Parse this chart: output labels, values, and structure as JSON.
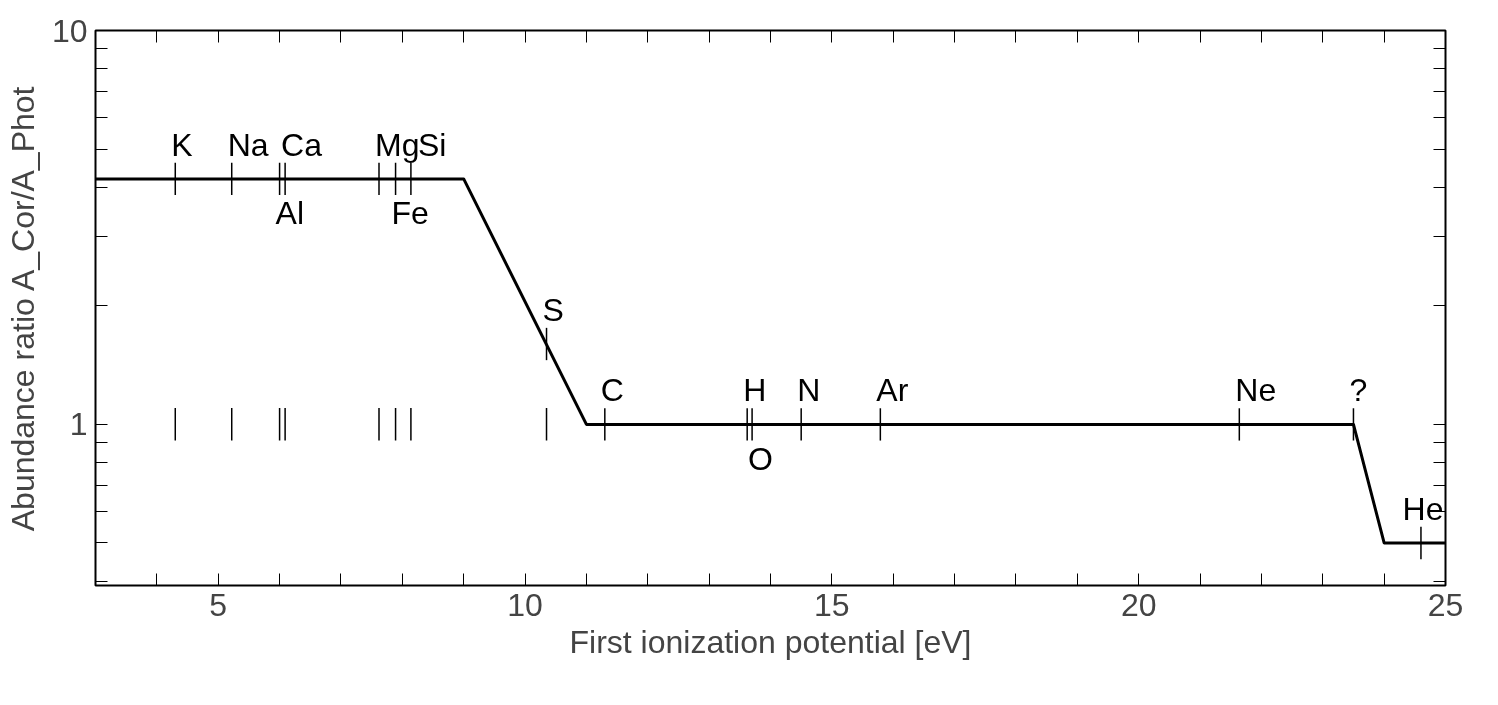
{
  "chart_data": {
    "type": "line",
    "xlabel": "First ionization potential [eV]",
    "ylabel": "Abundance ratio A_Cor/A_Phot",
    "log": "y",
    "grid": false,
    "line_style": "solid",
    "xlim": [
      3,
      25
    ],
    "ylim": [
      0.39,
      10
    ],
    "xticks": [
      {
        "value": 3,
        "label": null
      },
      {
        "value": 4,
        "label": null
      },
      5,
      {
        "value": 6,
        "label": null
      },
      {
        "value": 7,
        "label": null
      },
      {
        "value": 8,
        "label": null
      },
      {
        "value": 9,
        "label": null
      },
      10,
      {
        "value": 11,
        "label": null
      },
      {
        "value": 12,
        "label": null
      },
      {
        "value": 13,
        "label": null
      },
      {
        "value": 14,
        "label": null
      },
      15,
      {
        "value": 16,
        "label": null
      },
      {
        "value": 17,
        "label": null
      },
      {
        "value": 18,
        "label": null
      },
      {
        "value": 19,
        "label": null
      },
      20,
      {
        "value": 21,
        "label": null
      },
      {
        "value": 22,
        "label": null
      },
      {
        "value": 23,
        "label": null
      },
      {
        "value": 24,
        "label": null
      },
      25
    ],
    "yticks": [
      {
        "value": 0.4,
        "label": null
      },
      {
        "value": 0.5,
        "label": null
      },
      {
        "value": 0.6,
        "label": null
      },
      {
        "value": 0.7,
        "label": null
      },
      {
        "value": 0.8,
        "label": null
      },
      {
        "value": 0.9,
        "label": null
      },
      1,
      {
        "value": 2,
        "label": null
      },
      {
        "value": 3,
        "label": null
      },
      {
        "value": 4,
        "label": null
      },
      {
        "value": 5,
        "label": null
      },
      {
        "value": 6,
        "label": null
      },
      {
        "value": 7,
        "label": null
      },
      {
        "value": 8,
        "label": null
      },
      {
        "value": 9,
        "label": null
      },
      10
    ],
    "series": [
      {
        "color": "#000000",
        "x": [
          3,
          9,
          11,
          23.5,
          24,
          25
        ],
        "values": [
          4.2,
          4.2,
          1,
          1,
          0.5,
          0.5
        ]
      },
      {
        "color": "#000000",
        "x": [
          4.3,
          4.3,
          null,
          5.22,
          5.22,
          null,
          6.0,
          6.0,
          null,
          6.09,
          6.09,
          null,
          7.62,
          7.62,
          null,
          7.89,
          7.89,
          null,
          8.14,
          8.14,
          null,
          10.35,
          10.35
        ],
        "values": [
          0.91,
          1.1,
          null,
          0.91,
          1.1,
          null,
          0.91,
          1.1,
          null,
          0.91,
          1.1,
          null,
          0.91,
          1.1,
          null,
          0.91,
          1.1,
          null,
          0.91,
          1.1,
          null,
          0.91,
          1.1
        ]
      }
    ],
    "annotations": [
      {
        "text": "K",
        "x": 4.3,
        "y": 4.2
      },
      {
        "text": "Na",
        "x": 5.22,
        "y": 4.2
      },
      {
        "text": "Ca",
        "x": 6.09,
        "y": 4.2
      },
      {
        "text": "Al",
        "x": 6.0,
        "y": 4.2
      },
      {
        "text": "Mg",
        "x": 7.62,
        "y": 4.2
      },
      {
        "text": "Fe",
        "x": 7.89,
        "y": 4.2
      },
      {
        "text": "Si",
        "x": 8.14,
        "y": 4.2
      },
      {
        "text": "S",
        "x": 10.35,
        "y": 1.6
      },
      {
        "text": "C",
        "x": 11.3,
        "y": 1
      },
      {
        "text": "H",
        "x": 13.62,
        "y": 1
      },
      {
        "text": "O",
        "x": 13.7,
        "y": 1
      },
      {
        "text": "N",
        "x": 14.5,
        "y": 1
      },
      {
        "text": "Ar",
        "x": 15.79,
        "y": 1
      },
      {
        "text": "Ne",
        "x": 21.64,
        "y": 1
      },
      {
        "text": "?",
        "x": 23.5,
        "y": 1
      },
      {
        "text": "He",
        "x": 24.6,
        "y": 0.5
      }
    ]
  }
}
